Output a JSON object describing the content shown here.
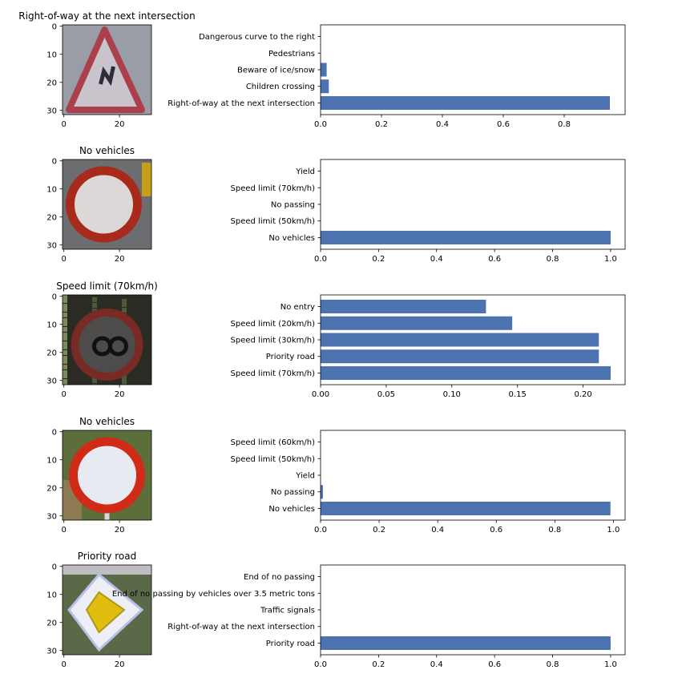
{
  "colors": {
    "bar": "#4c72b0"
  },
  "chart_data": [
    {
      "type": "bar",
      "orientation": "horizontal",
      "image_title": "Right-of-way at the next intersection",
      "sign_icon": "warning-triangle-double-curve",
      "image_axis": {
        "x_ticks": [
          "0",
          "20"
        ],
        "y_ticks": [
          "0",
          "10",
          "20",
          "30"
        ]
      },
      "categories": [
        "Right-of-way at the next intersection",
        "Children crossing",
        "Beware of ice/snow",
        "Pedestrians",
        "Dangerous curve to the right"
      ],
      "values": [
        0.95,
        0.027,
        0.02,
        0.0,
        0.0
      ],
      "xlim": [
        0,
        1.0
      ],
      "x_ticks": [
        "0.0",
        "0.2",
        "0.4",
        "0.6",
        "0.8"
      ]
    },
    {
      "type": "bar",
      "orientation": "horizontal",
      "image_title": "No vehicles",
      "sign_icon": "no-vehicles-circle",
      "image_axis": {
        "x_ticks": [
          "0",
          "20"
        ],
        "y_ticks": [
          "0",
          "10",
          "20",
          "30"
        ]
      },
      "categories": [
        "No vehicles",
        "Speed limit (50km/h)",
        "No passing",
        "Speed limit (70km/h)",
        "Yield"
      ],
      "values": [
        1.0,
        0.0,
        0.0,
        0.0,
        0.0
      ],
      "xlim": [
        0,
        1.05
      ],
      "x_ticks": [
        "0.0",
        "0.2",
        "0.4",
        "0.6",
        "0.8",
        "1.0"
      ]
    },
    {
      "type": "bar",
      "orientation": "horizontal",
      "image_title": "Speed limit (70km/h)",
      "sign_icon": "speed-limit-circle-dark",
      "image_axis": {
        "x_ticks": [
          "0",
          "20"
        ],
        "y_ticks": [
          "0",
          "10",
          "20",
          "30"
        ]
      },
      "categories": [
        "Speed limit (70km/h)",
        "Priority road",
        "Speed limit (30km/h)",
        "Speed limit (20km/h)",
        "No entry"
      ],
      "values": [
        0.221,
        0.212,
        0.212,
        0.146,
        0.126
      ],
      "xlim": [
        0,
        0.232
      ],
      "x_ticks": [
        "0.00",
        "0.05",
        "0.10",
        "0.15",
        "0.20"
      ]
    },
    {
      "type": "bar",
      "orientation": "horizontal",
      "image_title": "No vehicles",
      "sign_icon": "no-vehicles-circle",
      "image_axis": {
        "x_ticks": [
          "0",
          "20"
        ],
        "y_ticks": [
          "0",
          "10",
          "20",
          "30"
        ]
      },
      "categories": [
        "No vehicles",
        "No passing",
        "Yield",
        "Speed limit (50km/h)",
        "Speed limit (60km/h)"
      ],
      "values": [
        0.99,
        0.008,
        0.0,
        0.0,
        0.0
      ],
      "xlim": [
        0,
        1.04
      ],
      "x_ticks": [
        "0.0",
        "0.2",
        "0.4",
        "0.6",
        "0.8",
        "1.0"
      ]
    },
    {
      "type": "bar",
      "orientation": "horizontal",
      "image_title": "Priority road",
      "sign_icon": "priority-road-diamond",
      "image_axis": {
        "x_ticks": [
          "0",
          "20"
        ],
        "y_ticks": [
          "0",
          "10",
          "20",
          "30"
        ]
      },
      "categories": [
        "Priority road",
        "Right-of-way at the next intersection",
        "Traffic signals",
        "End of no passing by vehicles over 3.5 metric tons",
        "End of no passing"
      ],
      "values": [
        1.0,
        0.0,
        0.0,
        0.0,
        0.0
      ],
      "xlim": [
        0,
        1.05
      ],
      "x_ticks": [
        "0.0",
        "0.2",
        "0.4",
        "0.6",
        "0.8",
        "1.0"
      ]
    }
  ]
}
